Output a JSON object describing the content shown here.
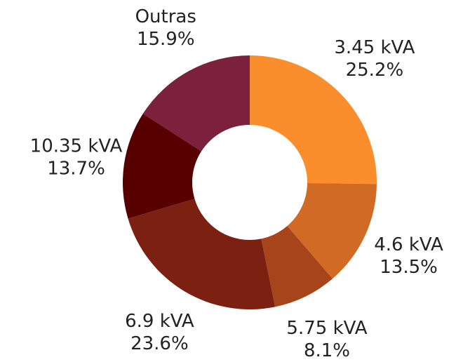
{
  "chart_data": {
    "type": "donut",
    "categories": [
      "3.45 kVA",
      "4.6 kVA",
      "5.75 kVA",
      "6.9 kVA",
      "10.35 kVA",
      "Outras"
    ],
    "values": [
      25.2,
      13.5,
      8.1,
      23.6,
      13.7,
      15.9
    ],
    "value_labels": [
      "25.2%",
      "13.5%",
      "8.1%",
      "23.6%",
      "13.7%",
      "15.9%"
    ],
    "colors": [
      "#fb8e2c",
      "#d06a24",
      "#a8441a",
      "#7c2111",
      "#560000",
      "#7c213d"
    ]
  }
}
